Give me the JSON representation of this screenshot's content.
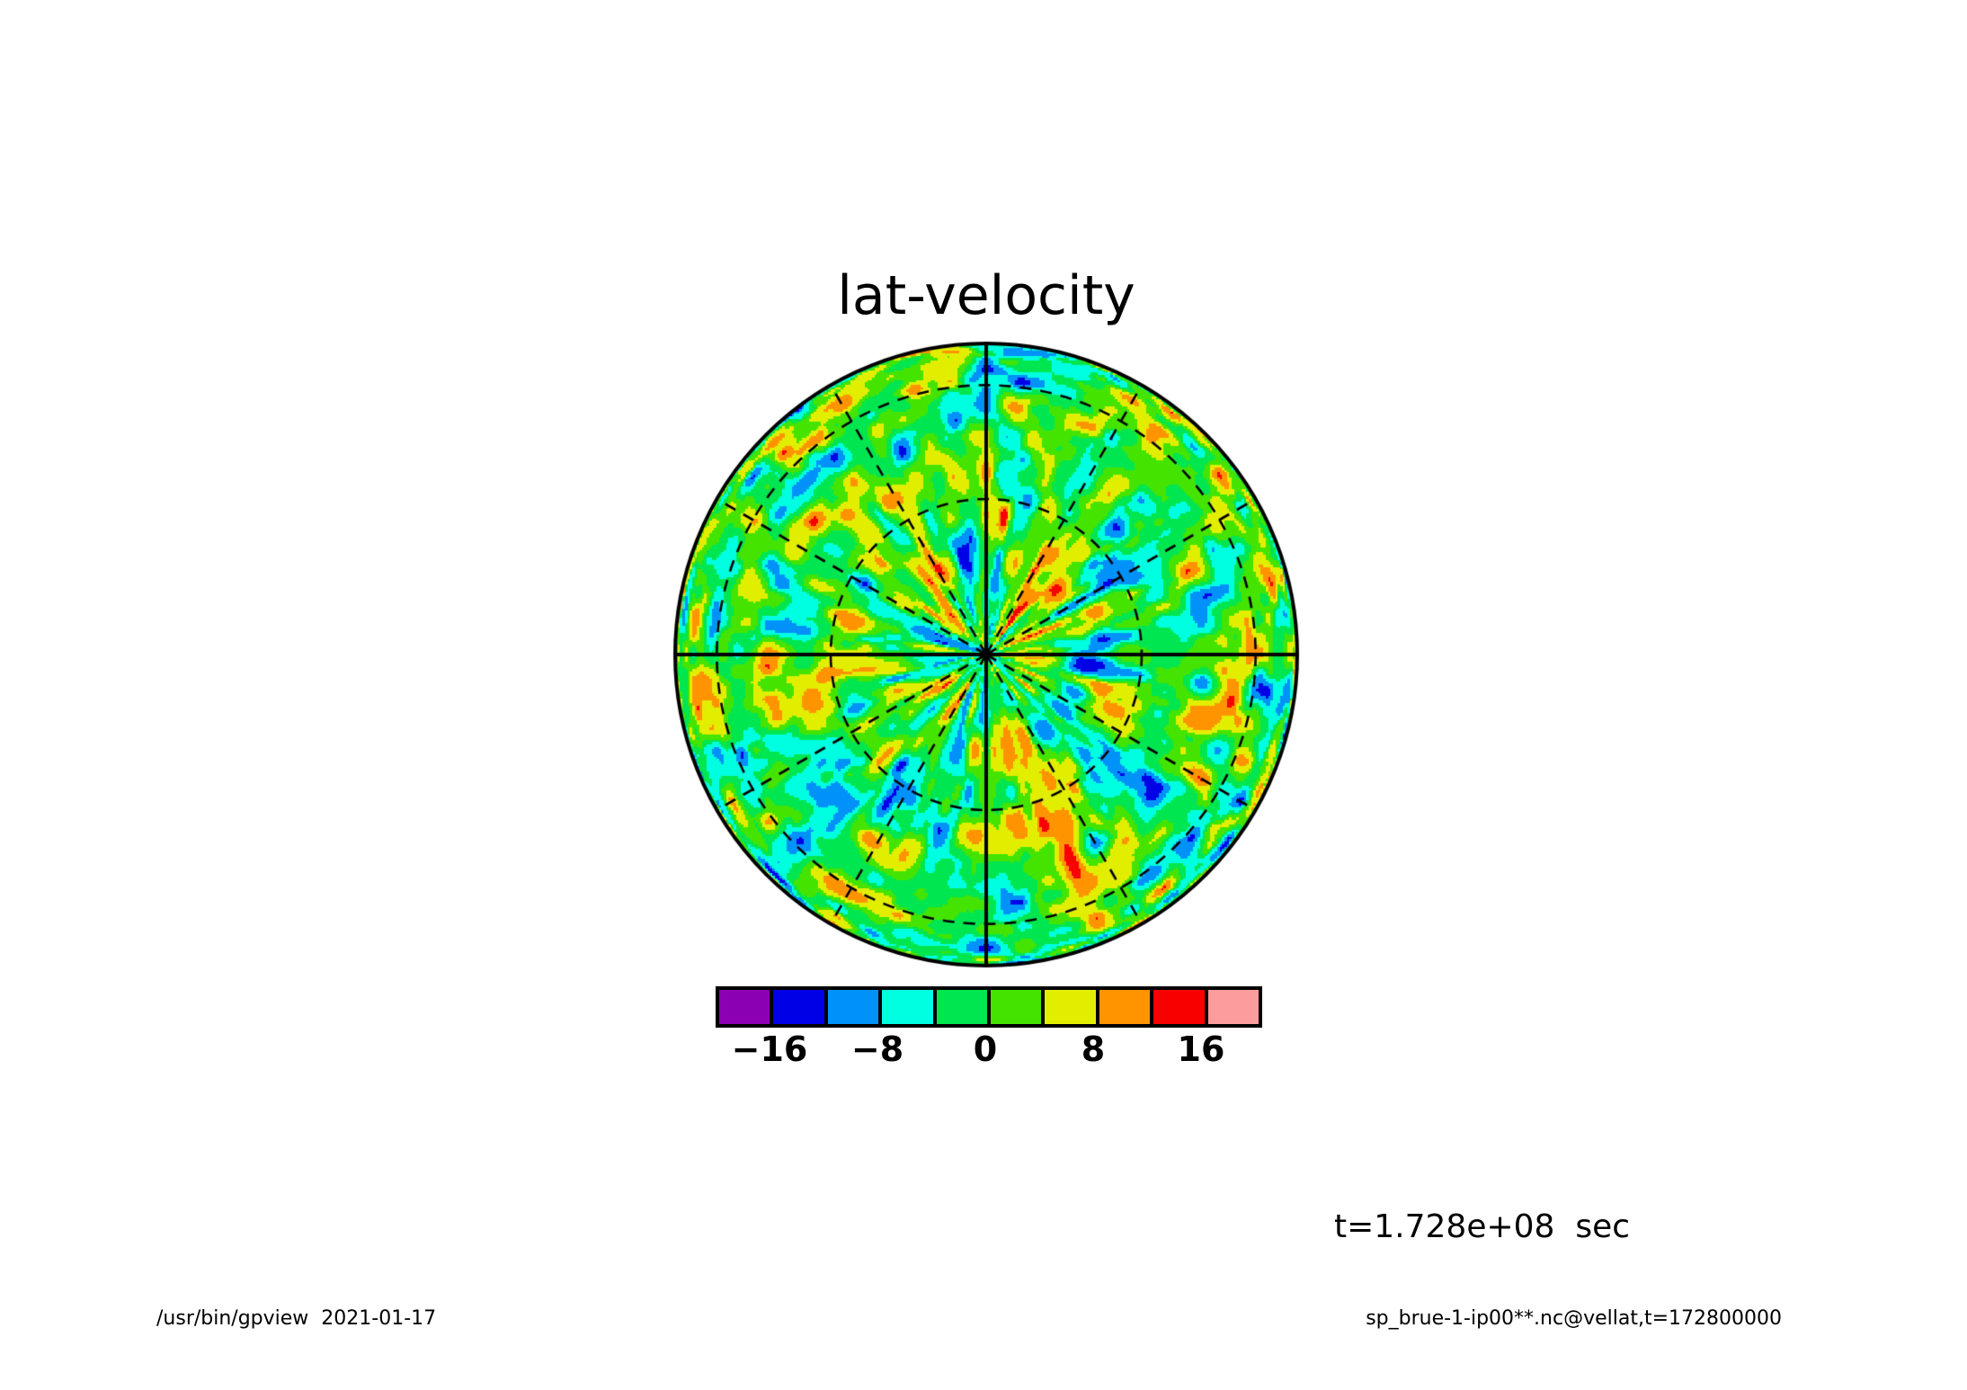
{
  "title": "lat-velocity",
  "time_label": "t=1.728e+08  sec",
  "footer": {
    "left": "/usr/bin/gpview  2021-01-17",
    "right": "sp_brue-1-ip00**.nc@vellat,t=172800000"
  },
  "chart_data": {
    "type": "heatmap",
    "subtype": "filled-contour-polar-orthographic-map",
    "title": "lat-velocity",
    "variable": "vellat",
    "time_annotation": "t=1.728e+08 sec",
    "projection": {
      "view": "polar orthographic hemisphere seen from above the pole",
      "lat_grid_circles_deg": [
        30,
        60
      ],
      "meridian_step_deg": 30,
      "solid_axis_meridians_deg": [
        0,
        90,
        180,
        270
      ],
      "grid_style": "dashed",
      "outline_style": "solid"
    },
    "colorbar": {
      "range": [
        -20,
        20
      ],
      "contour_interval": 4,
      "levels": [
        -20,
        -16,
        -12,
        -8,
        -4,
        0,
        4,
        8,
        12,
        16,
        20
      ],
      "tick_values": [
        -16,
        -8,
        0,
        8,
        16
      ],
      "tick_labels": [
        "−16",
        "−8",
        "0",
        "8",
        "16"
      ],
      "colors": [
        "#8C00B4",
        "#0000E6",
        "#0092F8",
        "#00FFE0",
        "#00E650",
        "#44E400",
        "#E2EE00",
        "#FF9400",
        "#F80000",
        "#FC9C9C"
      ],
      "color_names": [
        "purple",
        "blue",
        "azure",
        "cyan",
        "spring-green",
        "green",
        "yellow",
        "orange",
        "red",
        "pink"
      ]
    },
    "field": {
      "description": "Turbulent latitudinal velocity anomaly field on the hemisphere: dominated by values in -4..4 (greens) with scattered cyan/yellow blobs (|v| 4-8), azure/orange patches (8-12), occasional blue/red extremes (12-16), and streaks converging at the pole in the disk center",
      "render": {
        "seed": 13,
        "lon_cells": 48,
        "lat_cells": 10,
        "amp1": 11,
        "amp2": 5.5
      }
    },
    "legend_position": "bottom",
    "grid": true
  },
  "styles": {
    "line_color": "#000000",
    "background": "#ffffff",
    "text_color": "#000000"
  }
}
